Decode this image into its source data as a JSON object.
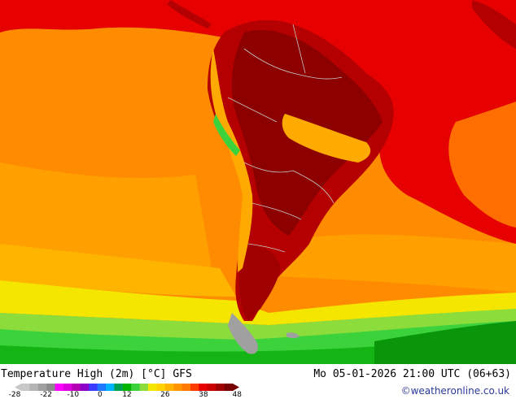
{
  "map": {
    "title": "Temperature High (2m) [°C] GFS",
    "valid_time": "Mo 05-01-2026 21:00 UTC (06+63)",
    "credit": "©weatheronline.co.uk",
    "colors": {
      "ocean_warm": "#ff8c00",
      "ocean_mid": "#ffa500",
      "ocean_cool": "#ffc800",
      "yellow": "#f5e600",
      "green_light": "#3cd23c",
      "green": "#14b414",
      "green_dark": "#0a960a",
      "red": "#e60000",
      "red_dark": "#b40000",
      "maroon": "#8c0000",
      "highland_orange": "#ffaa00",
      "ice": "#a0a0a0",
      "border": "#c8c8c8"
    }
  },
  "legend": {
    "tick_labels": [
      "-28",
      "-22",
      "-10",
      "0",
      "12",
      "26",
      "38",
      "48"
    ],
    "colors": [
      "#c8c8c8",
      "#b4b4b4",
      "#a0a0a0",
      "#8c8c8c",
      "#ff00ff",
      "#dc00dc",
      "#b400b4",
      "#8c00c8",
      "#3c3cff",
      "#1e78ff",
      "#00b4ff",
      "#00a050",
      "#00b400",
      "#3cd23c",
      "#8cdc3c",
      "#f5e600",
      "#ffd200",
      "#ffb400",
      "#ff9600",
      "#ff7800",
      "#ff3c00",
      "#e60000",
      "#c80000",
      "#a00000",
      "#780000"
    ]
  }
}
